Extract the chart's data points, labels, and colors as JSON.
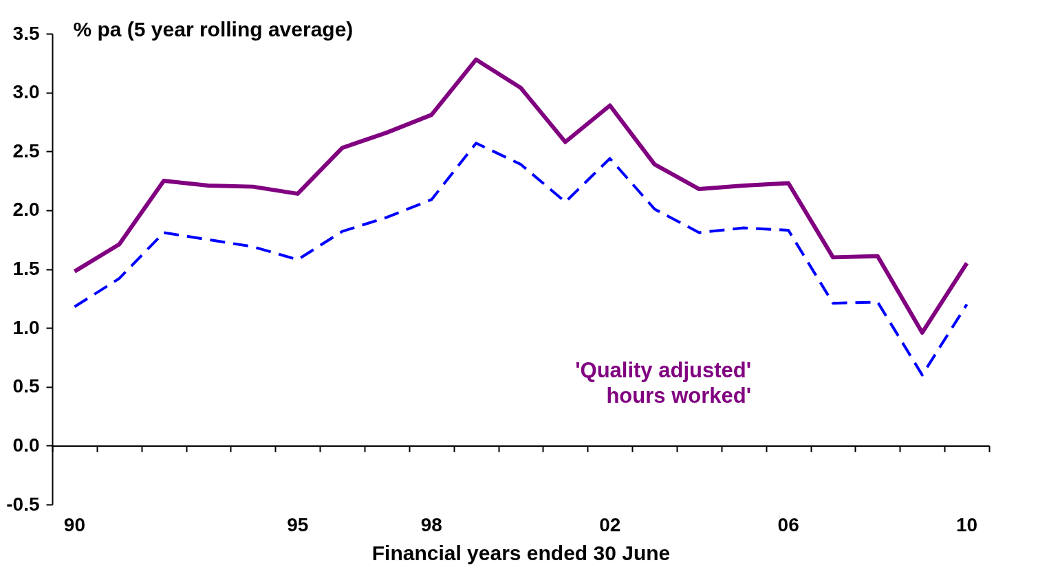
{
  "chart_data": {
    "type": "line",
    "ylabel": "% pa (5 year rolling average)",
    "xlabel": "Financial years ended 30 June",
    "categories": [
      "90",
      null,
      null,
      null,
      null,
      "95",
      null,
      null,
      "98",
      null,
      null,
      null,
      "02",
      null,
      null,
      null,
      "06",
      null,
      null,
      null,
      "10"
    ],
    "series": [
      {
        "name": "'Quality adjusted'\nhours worked'",
        "color": "#800080",
        "line_style": "solid",
        "values": [
          1.48,
          1.71,
          2.25,
          2.21,
          2.2,
          2.14,
          2.53,
          2.66,
          2.81,
          3.28,
          3.04,
          2.58,
          2.89,
          2.39,
          2.18,
          2.21,
          2.23,
          1.6,
          1.61,
          0.96,
          1.55
        ]
      },
      {
        "color": "#0000ff",
        "line_style": "dashed",
        "values": [
          1.18,
          1.42,
          1.81,
          1.75,
          1.69,
          1.58,
          1.82,
          1.94,
          2.09,
          2.57,
          2.39,
          2.07,
          2.44,
          2.01,
          1.81,
          1.85,
          1.83,
          1.21,
          1.22,
          0.6,
          1.2
        ]
      }
    ],
    "ylim": [
      -0.5,
      3.5
    ],
    "yticks": [
      -0.5,
      {
        "value": 0,
        "label": "0.0"
      },
      0.5,
      {
        "value": 1,
        "label": "1.0"
      },
      1.5,
      {
        "value": 2,
        "label": "2.0"
      },
      2.5,
      {
        "value": 3,
        "label": "3.0"
      },
      3.5
    ],
    "marker": "none"
  }
}
